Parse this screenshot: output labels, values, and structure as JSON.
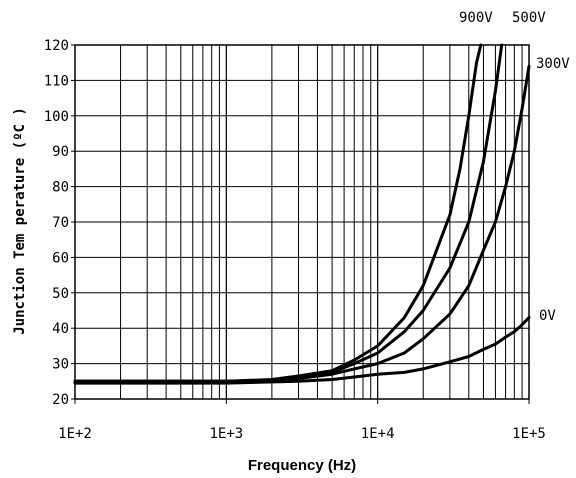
{
  "chart_data": {
    "type": "line",
    "title": "",
    "xlabel": "Frequency (Hz)",
    "ylabel": "Junction Tem perature (ºC )",
    "xscale": "log",
    "xlim": [
      100,
      100000
    ],
    "ylim": [
      20,
      120
    ],
    "grid": true,
    "legend": "none",
    "x_tick_labels": [
      "1E+2",
      "1E+3",
      "1E+4",
      "1E+5"
    ],
    "y_tick_labels": [
      "20",
      "30",
      "40",
      "50",
      "60",
      "70",
      "80",
      "90",
      "100",
      "110",
      "120"
    ],
    "line_color": "#000000",
    "series": [
      {
        "name": "900V",
        "points": [
          [
            100,
            25
          ],
          [
            1000,
            25
          ],
          [
            2000,
            25.5
          ],
          [
            3000,
            26.5
          ],
          [
            5000,
            28
          ],
          [
            7000,
            31
          ],
          [
            10000,
            35
          ],
          [
            15000,
            43
          ],
          [
            20000,
            52
          ],
          [
            30000,
            72
          ],
          [
            35000,
            85
          ],
          [
            40000,
            100
          ],
          [
            45000,
            115
          ],
          [
            48000,
            120
          ]
        ]
      },
      {
        "name": "500V",
        "points": [
          [
            100,
            25
          ],
          [
            1000,
            25
          ],
          [
            2000,
            25.3
          ],
          [
            3000,
            26
          ],
          [
            5000,
            27.5
          ],
          [
            7000,
            30
          ],
          [
            10000,
            33
          ],
          [
            15000,
            39
          ],
          [
            20000,
            45
          ],
          [
            30000,
            57
          ],
          [
            40000,
            70
          ],
          [
            50000,
            87
          ],
          [
            60000,
            107
          ],
          [
            66000,
            120
          ]
        ]
      },
      {
        "name": "300V",
        "points": [
          [
            100,
            25
          ],
          [
            1000,
            25
          ],
          [
            2000,
            25.2
          ],
          [
            3000,
            25.8
          ],
          [
            5000,
            27
          ],
          [
            7000,
            28.5
          ],
          [
            10000,
            30
          ],
          [
            15000,
            33
          ],
          [
            20000,
            37
          ],
          [
            30000,
            44
          ],
          [
            40000,
            52
          ],
          [
            50000,
            62
          ],
          [
            60000,
            70
          ],
          [
            70000,
            80
          ],
          [
            80000,
            90
          ],
          [
            90000,
            102
          ],
          [
            100000,
            114
          ]
        ]
      },
      {
        "name": "0V",
        "points": [
          [
            100,
            24.5
          ],
          [
            1000,
            24.5
          ],
          [
            3000,
            25
          ],
          [
            5000,
            25.5
          ],
          [
            8000,
            26.5
          ],
          [
            10000,
            27
          ],
          [
            15000,
            27.5
          ],
          [
            20000,
            28.5
          ],
          [
            30000,
            30.5
          ],
          [
            40000,
            32
          ],
          [
            50000,
            34
          ],
          [
            60000,
            35.5
          ],
          [
            70000,
            37.5
          ],
          [
            80000,
            39
          ],
          [
            90000,
            41
          ],
          [
            100000,
            43
          ]
        ]
      }
    ]
  }
}
